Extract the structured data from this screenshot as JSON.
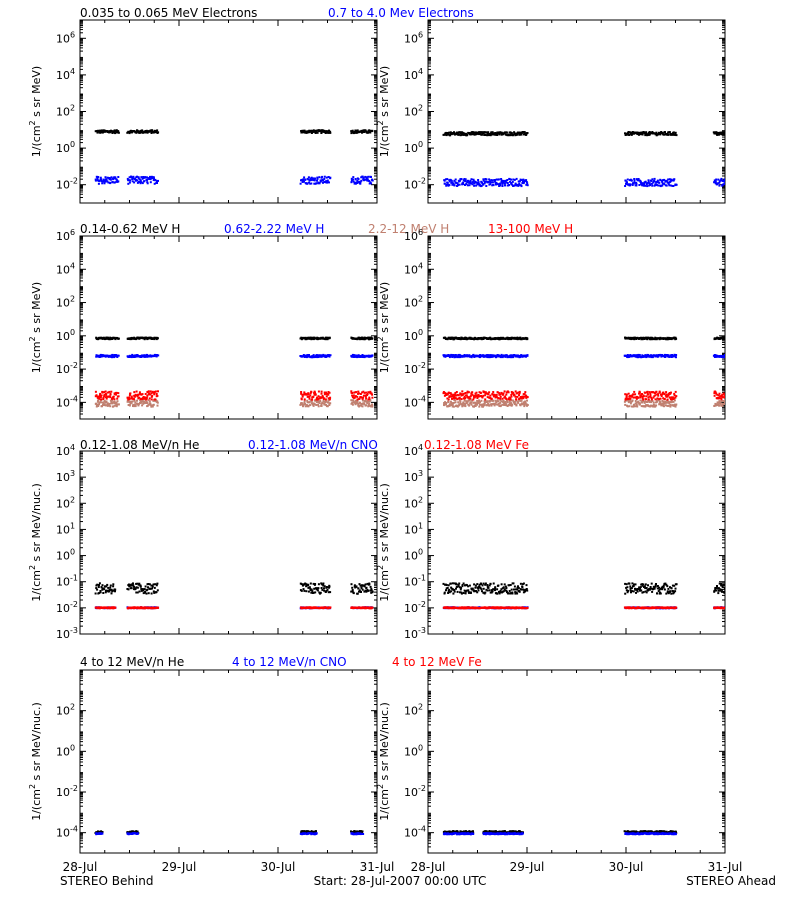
{
  "rows": [
    {
      "labels": [
        {
          "text": "0.035 to 0.065 MeV Electrons",
          "color": "#000000"
        },
        {
          "text": "0.7 to 4.0 Mev Electrons",
          "color": "#0000ff"
        }
      ],
      "ylabel": [
        "1/(cm",
        "2",
        " s sr MeV)"
      ],
      "ylog": [
        -3,
        7
      ],
      "yticks": [
        {
          "exp": -2,
          "label": [
            "10",
            "-2"
          ]
        },
        {
          "exp": 0,
          "label": [
            "10",
            "0"
          ]
        },
        {
          "exp": 2,
          "label": [
            "10",
            "2"
          ]
        },
        {
          "exp": 4,
          "label": [
            "10",
            "4"
          ]
        },
        {
          "exp": 6,
          "label": [
            "10",
            "6"
          ]
        }
      ]
    },
    {
      "labels": [
        {
          "text": "0.14-0.62 MeV H",
          "color": "#000000"
        },
        {
          "text": "0.62-2.22 MeV H",
          "color": "#0000ff"
        },
        {
          "text": "2.2-12 MeV H",
          "color": "#c08070"
        },
        {
          "text": "13-100 MeV H",
          "color": "#ff0000"
        }
      ],
      "ylabel": [
        "1/(cm",
        "2",
        " s sr MeV)"
      ],
      "ylog": [
        -5,
        6
      ],
      "yticks": [
        {
          "exp": -4,
          "label": [
            "10",
            "-4"
          ]
        },
        {
          "exp": -2,
          "label": [
            "10",
            "-2"
          ]
        },
        {
          "exp": 0,
          "label": [
            "10",
            "0"
          ]
        },
        {
          "exp": 2,
          "label": [
            "10",
            "2"
          ]
        },
        {
          "exp": 4,
          "label": [
            "10",
            "4"
          ]
        },
        {
          "exp": 6,
          "label": [
            "10",
            "6"
          ]
        }
      ]
    },
    {
      "labels": [
        {
          "text": "0.12-1.08 MeV/n He",
          "color": "#000000"
        },
        {
          "text": "0.12-1.08 MeV/n CNO",
          "color": "#0000ff"
        },
        {
          "text": "0.12-1.08 MeV Fe",
          "color": "#ff0000"
        }
      ],
      "ylabel": [
        "1/(cm",
        "2",
        " s sr MeV/nuc.)"
      ],
      "ylog": [
        -3,
        4
      ],
      "yticks": [
        {
          "exp": -3,
          "label": [
            "10",
            "-3"
          ]
        },
        {
          "exp": -2,
          "label": [
            "10",
            "-2"
          ]
        },
        {
          "exp": -1,
          "label": [
            "10",
            "-1"
          ]
        },
        {
          "exp": 0,
          "label": [
            "10",
            "0"
          ]
        },
        {
          "exp": 1,
          "label": [
            "10",
            "1"
          ]
        },
        {
          "exp": 2,
          "label": [
            "10",
            "2"
          ]
        },
        {
          "exp": 3,
          "label": [
            "10",
            "3"
          ]
        },
        {
          "exp": 4,
          "label": [
            "10",
            "4"
          ]
        }
      ]
    },
    {
      "labels": [
        {
          "text": "4 to 12 MeV/n He",
          "color": "#000000"
        },
        {
          "text": "4 to 12 MeV/n CNO",
          "color": "#0000ff"
        },
        {
          "text": "4 to 12 MeV Fe",
          "color": "#ff0000"
        }
      ],
      "ylabel": [
        "1/(cm",
        "2",
        " s sr MeV/nuc.)"
      ],
      "ylog": [
        -5,
        4
      ],
      "yticks": [
        {
          "exp": -4,
          "label": [
            "10",
            "-4"
          ]
        },
        {
          "exp": -2,
          "label": [
            "10",
            "-2"
          ]
        },
        {
          "exp": 0,
          "label": [
            "10",
            "0"
          ]
        },
        {
          "exp": 2,
          "label": [
            "10",
            "2"
          ]
        }
      ]
    }
  ],
  "xticks": [
    "28-Jul",
    "29-Jul",
    "30-Jul",
    "31-Jul"
  ],
  "footer": {
    "left": "STEREO Behind",
    "center": "Start: 28-Jul-2007 00:00 UTC",
    "right": "STEREO Ahead"
  },
  "chart_data": [
    {
      "type": "scatter",
      "spacecraft": "STEREO Behind",
      "panel": "electrons",
      "ylabel": "1/(cm^2 s sr MeV)",
      "ylim": [
        0.001,
        10000000
      ],
      "x_range": [
        "28-Jul",
        "31-Jul"
      ],
      "series": [
        {
          "name": "0.035 to 0.065 MeV Electrons",
          "color": "#000000",
          "level": 9,
          "scatter_decades": 0.08,
          "intervals": [
            [
              0.15,
              0.38
            ],
            [
              0.47,
              0.78
            ],
            [
              2.22,
              2.52
            ],
            [
              2.73,
              2.95
            ]
          ]
        },
        {
          "name": "0.7 to 4.0 Mev Electrons",
          "color": "#0000ff",
          "level": 0.02,
          "scatter_decades": 0.2,
          "intervals": [
            [
              0.15,
              0.38
            ],
            [
              0.47,
              0.78
            ],
            [
              2.22,
              2.52
            ],
            [
              2.73,
              2.95
            ]
          ]
        }
      ]
    },
    {
      "type": "scatter",
      "spacecraft": "STEREO Ahead",
      "panel": "electrons",
      "ylabel": "1/(cm^2 s sr MeV)",
      "ylim": [
        0.001,
        10000000
      ],
      "x_range": [
        "28-Jul",
        "31-Jul"
      ],
      "series": [
        {
          "name": "0.035 to 0.065 MeV Electrons",
          "color": "#000000",
          "level": 7,
          "scatter_decades": 0.09,
          "intervals": [
            [
              0.15,
              1.0
            ],
            [
              1.98,
              2.5
            ],
            [
              2.88,
              3.0
            ]
          ]
        },
        {
          "name": "0.7 to 4.0 Mev Electrons",
          "color": "#0000ff",
          "level": 0.015,
          "scatter_decades": 0.2,
          "intervals": [
            [
              0.15,
              1.0
            ],
            [
              1.98,
              2.5
            ],
            [
              2.88,
              3.0
            ]
          ]
        }
      ]
    },
    {
      "type": "scatter",
      "spacecraft": "STEREO Behind",
      "panel": "protons",
      "ylabel": "1/(cm^2 s sr MeV)",
      "ylim": [
        1e-05,
        1000000
      ],
      "x_range": [
        "28-Jul",
        "31-Jul"
      ],
      "series": [
        {
          "name": "0.14-0.62 MeV H",
          "color": "#000000",
          "level": 0.8,
          "scatter_decades": 0.05,
          "intervals": [
            [
              0.15,
              0.38
            ],
            [
              0.47,
              0.78
            ],
            [
              2.22,
              2.52
            ],
            [
              2.73,
              2.95
            ]
          ]
        },
        {
          "name": "0.62-2.22 MeV H",
          "color": "#0000ff",
          "level": 0.07,
          "scatter_decades": 0.07,
          "intervals": [
            [
              0.15,
              0.38
            ],
            [
              0.47,
              0.78
            ],
            [
              2.22,
              2.52
            ],
            [
              2.73,
              2.95
            ]
          ]
        },
        {
          "name": "2.2-12 MeV H",
          "color": "#c08070",
          "level": 0.0001,
          "scatter_decades": 0.2,
          "intervals": [
            [
              0.15,
              0.38
            ],
            [
              0.47,
              0.78
            ],
            [
              2.22,
              2.52
            ],
            [
              2.73,
              2.95
            ]
          ]
        },
        {
          "name": "13-100 MeV H",
          "color": "#ff0000",
          "level": 0.0003,
          "scatter_decades": 0.25,
          "intervals": [
            [
              0.15,
              0.38
            ],
            [
              0.47,
              0.78
            ],
            [
              2.22,
              2.52
            ],
            [
              2.73,
              2.95
            ]
          ]
        }
      ]
    },
    {
      "type": "scatter",
      "spacecraft": "STEREO Ahead",
      "panel": "protons",
      "ylabel": "1/(cm^2 s sr MeV)",
      "ylim": [
        1e-05,
        1000000
      ],
      "x_range": [
        "28-Jul",
        "31-Jul"
      ],
      "series": [
        {
          "name": "0.14-0.62 MeV H",
          "color": "#000000",
          "level": 0.8,
          "scatter_decades": 0.05,
          "intervals": [
            [
              0.15,
              1.0
            ],
            [
              1.98,
              2.5
            ],
            [
              2.88,
              3.0
            ]
          ]
        },
        {
          "name": "0.62-2.22 MeV H",
          "color": "#0000ff",
          "level": 0.07,
          "scatter_decades": 0.07,
          "intervals": [
            [
              0.15,
              1.0
            ],
            [
              1.98,
              2.5
            ],
            [
              2.88,
              3.0
            ]
          ]
        },
        {
          "name": "2.2-12 MeV H",
          "color": "#c08070",
          "level": 0.0001,
          "scatter_decades": 0.2,
          "intervals": [
            [
              0.15,
              1.0
            ],
            [
              1.98,
              2.5
            ],
            [
              2.88,
              3.0
            ]
          ]
        },
        {
          "name": "13-100 MeV H",
          "color": "#ff0000",
          "level": 0.0003,
          "scatter_decades": 0.25,
          "intervals": [
            [
              0.15,
              1.0
            ],
            [
              1.98,
              2.5
            ],
            [
              2.88,
              3.0
            ]
          ]
        }
      ]
    },
    {
      "type": "scatter",
      "spacecraft": "STEREO Behind",
      "panel": "low-energy ions",
      "ylabel": "1/(cm^2 s sr MeV/nuc.)",
      "ylim": [
        0.001,
        10000
      ],
      "x_range": [
        "28-Jul",
        "31-Jul"
      ],
      "series": [
        {
          "name": "0.12-1.08 MeV/n He",
          "color": "#000000",
          "level": 0.06,
          "scatter_decades": 0.2,
          "intervals": [
            [
              0.15,
              0.35
            ],
            [
              0.47,
              0.78
            ],
            [
              2.22,
              2.52
            ],
            [
              2.73,
              2.95
            ]
          ]
        },
        {
          "name": "0.12-1.08 MeV/n CNO",
          "color": "#0000ff",
          "level": 0.011,
          "scatter_decades": 0.02,
          "intervals": [
            [
              0.15,
              0.35
            ],
            [
              0.47,
              0.78
            ],
            [
              2.22,
              2.52
            ],
            [
              2.73,
              2.95
            ]
          ]
        },
        {
          "name": "0.12-1.08 MeV Fe",
          "color": "#ff0000",
          "level": 0.011,
          "scatter_decades": 0.02,
          "intervals": [
            [
              0.15,
              0.35
            ],
            [
              0.47,
              0.78
            ],
            [
              2.22,
              2.52
            ],
            [
              2.73,
              2.95
            ]
          ]
        }
      ]
    },
    {
      "type": "scatter",
      "spacecraft": "STEREO Ahead",
      "panel": "low-energy ions",
      "ylabel": "1/(cm^2 s sr MeV/nuc.)",
      "ylim": [
        0.001,
        10000
      ],
      "x_range": [
        "28-Jul",
        "31-Jul"
      ],
      "series": [
        {
          "name": "0.12-1.08 MeV/n He",
          "color": "#000000",
          "level": 0.06,
          "scatter_decades": 0.2,
          "intervals": [
            [
              0.15,
              1.0
            ],
            [
              1.98,
              2.5
            ],
            [
              2.88,
              3.0
            ]
          ]
        },
        {
          "name": "0.12-1.08 MeV/n CNO",
          "color": "#0000ff",
          "level": 0.011,
          "scatter_decades": 0.02,
          "intervals": [
            [
              0.15,
              1.0
            ],
            [
              1.98,
              2.5
            ],
            [
              2.88,
              3.0
            ]
          ]
        },
        {
          "name": "0.12-1.08 MeV Fe",
          "color": "#ff0000",
          "level": 0.011,
          "scatter_decades": 0.02,
          "intervals": [
            [
              0.15,
              1.0
            ],
            [
              1.98,
              2.5
            ],
            [
              2.88,
              3.0
            ]
          ]
        }
      ]
    },
    {
      "type": "scatter",
      "spacecraft": "STEREO Behind",
      "panel": "high-energy ions",
      "ylabel": "1/(cm^2 s sr MeV/nuc.)",
      "ylim": [
        1e-05,
        10000
      ],
      "x_range": [
        "28-Jul",
        "31-Jul"
      ],
      "series": [
        {
          "name": "4 to 12 MeV/n He",
          "color": "#000000",
          "level": 0.00012,
          "scatter_decades": 0.05,
          "intervals": [
            [
              0.15,
              0.22
            ],
            [
              0.47,
              0.58
            ],
            [
              2.22,
              2.38
            ],
            [
              2.73,
              2.85
            ]
          ]
        },
        {
          "name": "4 to 12 MeV/n CNO",
          "color": "#0000ff",
          "level": 0.0001,
          "scatter_decades": 0.03,
          "intervals": [
            [
              0.15,
              0.22
            ],
            [
              0.47,
              0.58
            ],
            [
              2.22,
              2.38
            ],
            [
              2.73,
              2.85
            ]
          ]
        }
      ]
    },
    {
      "type": "scatter",
      "spacecraft": "STEREO Ahead",
      "panel": "high-energy ions",
      "ylabel": "1/(cm^2 s sr MeV/nuc.)",
      "ylim": [
        1e-05,
        10000
      ],
      "x_range": [
        "28-Jul",
        "31-Jul"
      ],
      "series": [
        {
          "name": "4 to 12 MeV/n He",
          "color": "#000000",
          "level": 0.00012,
          "scatter_decades": 0.05,
          "intervals": [
            [
              0.15,
              0.45
            ],
            [
              0.55,
              0.95
            ],
            [
              1.98,
              2.5
            ]
          ]
        },
        {
          "name": "4 to 12 MeV/n CNO",
          "color": "#0000ff",
          "level": 0.0001,
          "scatter_decades": 0.03,
          "intervals": [
            [
              0.15,
              0.45
            ],
            [
              0.55,
              0.95
            ],
            [
              1.98,
              2.5
            ]
          ]
        }
      ]
    }
  ]
}
